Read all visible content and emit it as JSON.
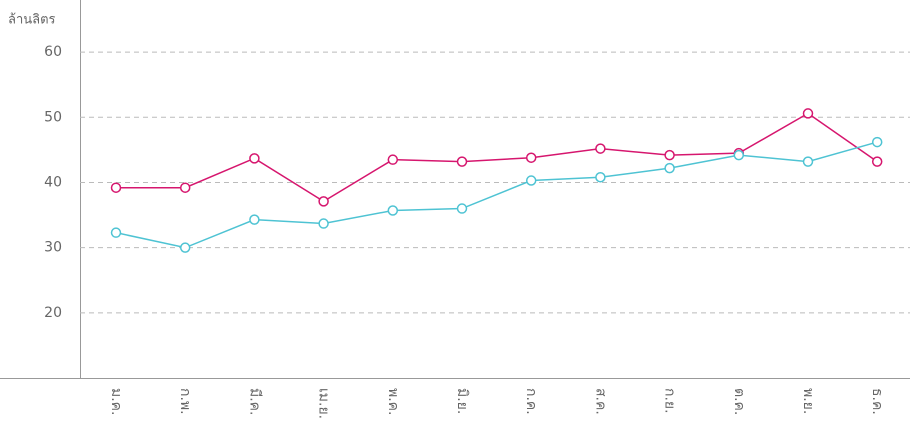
{
  "chart_data": {
    "type": "line",
    "y_label": "ล้านลิตร",
    "categories": [
      "ม.ค.",
      "ก.พ.",
      "มี.ค.",
      "เม.ย.",
      "พ.ค.",
      "มิ.ย.",
      "ก.ค.",
      "ส.ค.",
      "ก.ย.",
      "ต.ค.",
      "พ.ย.",
      "ธ.ค."
    ],
    "series": [
      {
        "color": "#d6166e",
        "values": [
          39.2,
          39.2,
          43.7,
          37.1,
          43.5,
          43.2,
          43.8,
          45.2,
          44.2,
          44.5,
          50.6,
          43.2
        ]
      },
      {
        "color": "#4ec3d3",
        "values": [
          32.3,
          30.0,
          34.3,
          33.7,
          35.7,
          36.0,
          40.3,
          40.8,
          42.2,
          44.2,
          43.2,
          46.2
        ]
      }
    ],
    "ylim": [
      10,
      68
    ],
    "yticks": [
      20,
      30,
      40,
      50,
      60
    ],
    "grid": true
  }
}
